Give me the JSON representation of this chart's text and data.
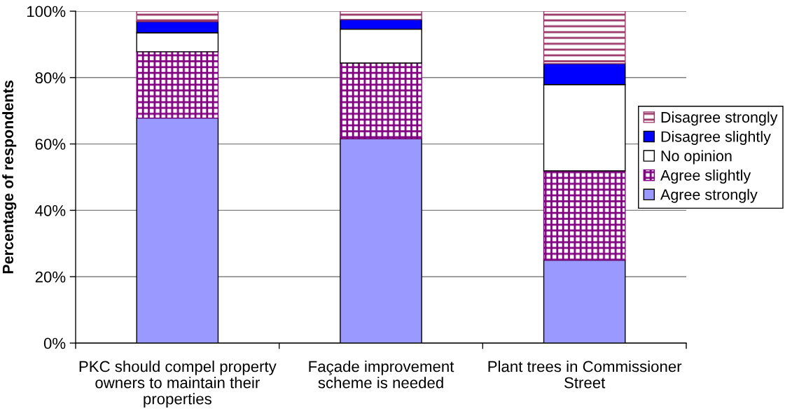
{
  "chart_data": {
    "type": "bar",
    "stacked": true,
    "ylabel": "Percentage of respondents",
    "categories": [
      "PKC should compel property\nowners to maintain their\nproperties",
      "Façade improvement\nscheme is needed",
      "Plant trees in Commissioner\nStreet"
    ],
    "series": [
      {
        "name": "Agree strongly",
        "color": "#9999ff",
        "values": [
          67.8,
          61.6,
          25.0
        ]
      },
      {
        "name": "Agree slightly",
        "color": "#800080",
        "values": [
          20.0,
          22.8,
          26.9
        ]
      },
      {
        "name": "No opinion",
        "color": "#ffffff",
        "values": [
          5.7,
          10.2,
          26.0
        ]
      },
      {
        "name": "Disagree slightly",
        "color": "#0000ff",
        "values": [
          3.4,
          2.9,
          6.3
        ]
      },
      {
        "name": "Disagree strongly",
        "color": "#993366",
        "values": [
          3.1,
          2.5,
          15.8
        ]
      }
    ],
    "ylim": [
      0,
      100
    ],
    "yticks": [
      {
        "value": 0,
        "label": "0%"
      },
      {
        "value": 20,
        "label": "20%"
      },
      {
        "value": 40,
        "label": "40%"
      },
      {
        "value": 60,
        "label": "60%"
      },
      {
        "value": 80,
        "label": "80%"
      },
      {
        "value": 100,
        "label": "100%"
      }
    ],
    "grid": "y",
    "legend": "right"
  }
}
